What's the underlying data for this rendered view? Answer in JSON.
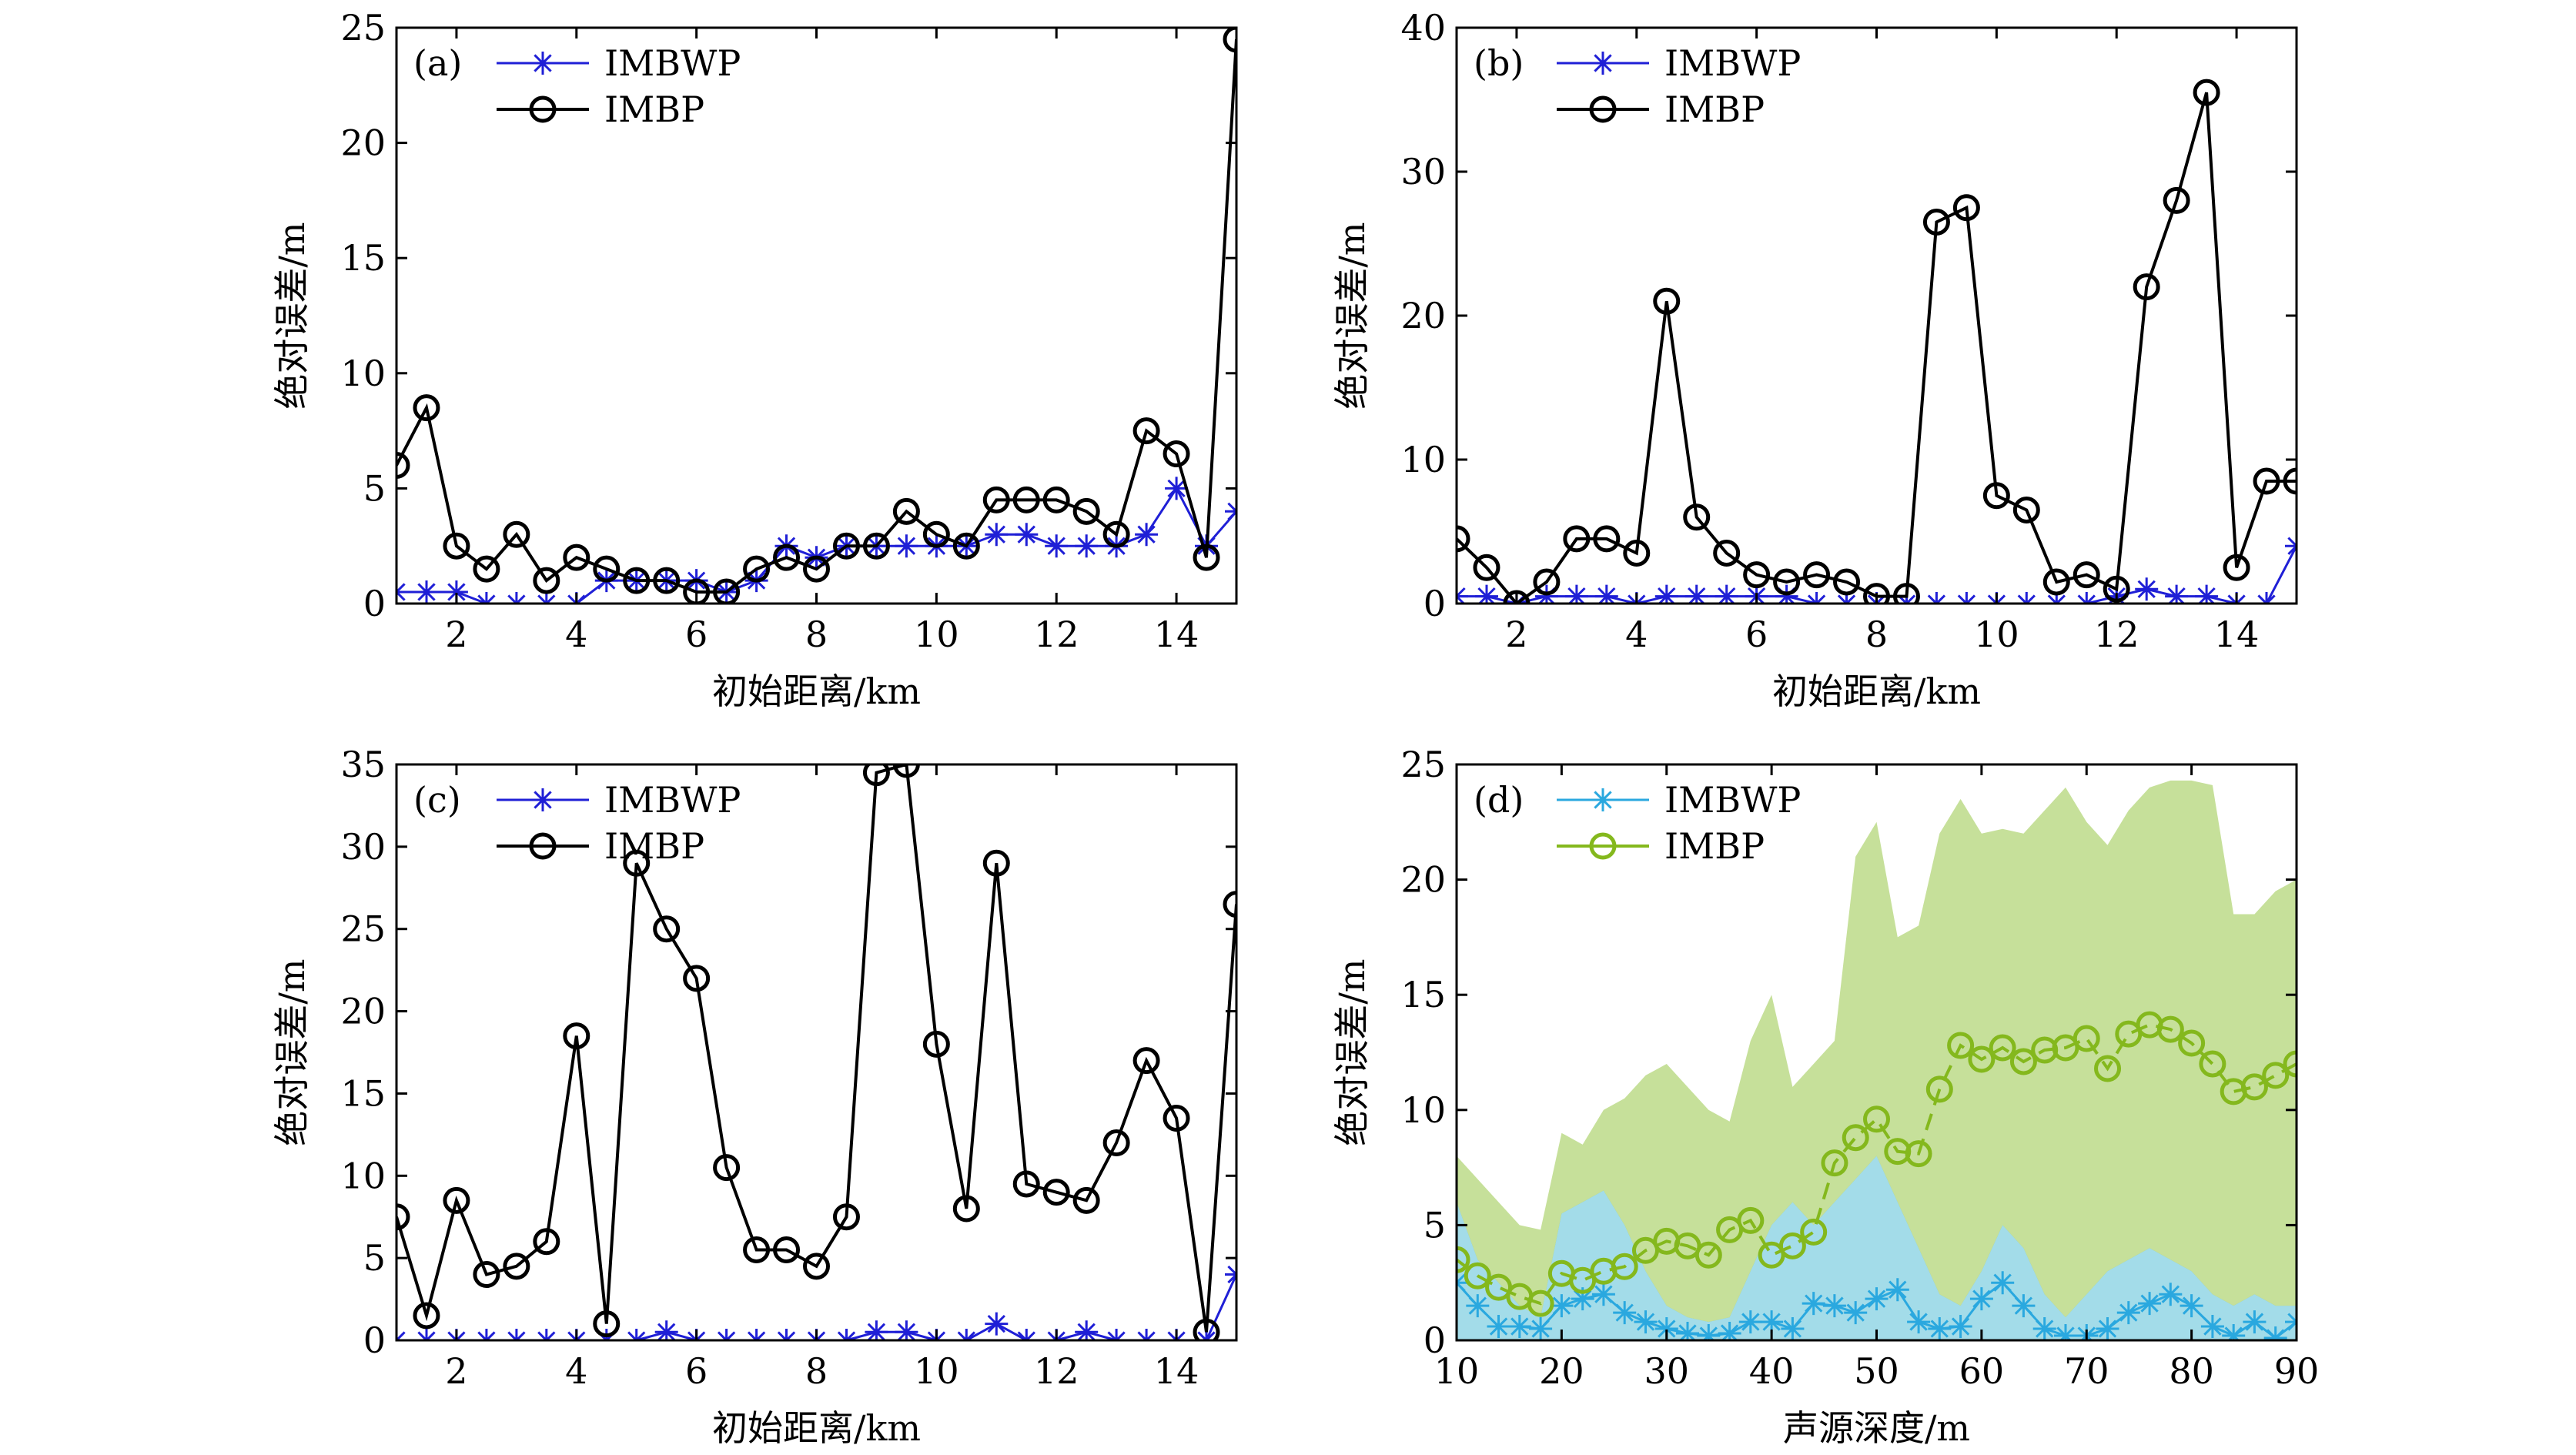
{
  "chart_data": [
    {
      "type": "line",
      "panel": "(a)",
      "xlabel": "初始距离/km",
      "ylabel": "绝对误差/m",
      "xlim": [
        1,
        15
      ],
      "ylim": [
        0,
        25
      ],
      "xticks": [
        2,
        4,
        6,
        8,
        10,
        12,
        14
      ],
      "yticks": [
        0,
        5,
        10,
        15,
        20,
        25
      ],
      "x": [
        1,
        1.5,
        2,
        2.5,
        3,
        3.5,
        4,
        4.5,
        5,
        5.5,
        6,
        6.5,
        7,
        7.5,
        8,
        8.5,
        9,
        9.5,
        10,
        10.5,
        11,
        11.5,
        12,
        12.5,
        13,
        13.5,
        14,
        14.5,
        15
      ],
      "legend_position": "top-left",
      "series": [
        {
          "name": "IMBWP",
          "color": "#1f1fd6",
          "marker": "star",
          "line": "solid",
          "values": [
            0.5,
            0.5,
            0.5,
            0,
            0,
            0,
            0,
            1,
            1,
            1,
            1,
            0.5,
            1,
            2.5,
            2,
            2.5,
            2.5,
            2.5,
            2.5,
            2.5,
            3,
            3,
            2.5,
            2.5,
            2.5,
            3,
            5,
            2.5,
            4
          ]
        },
        {
          "name": "IMBP",
          "color": "#000000",
          "marker": "circle",
          "line": "solid",
          "values": [
            6,
            8.5,
            2.5,
            1.5,
            3,
            1,
            2,
            1.5,
            1,
            1,
            0.5,
            0.5,
            1.5,
            2,
            1.5,
            2.5,
            2.5,
            4,
            3,
            2.5,
            4.5,
            4.5,
            4.5,
            4,
            3,
            7.5,
            6.5,
            2,
            24.5
          ]
        }
      ]
    },
    {
      "type": "line",
      "panel": "(b)",
      "xlabel": "初始距离/km",
      "ylabel": "绝对误差/m",
      "xlim": [
        1,
        15
      ],
      "ylim": [
        0,
        40
      ],
      "xticks": [
        2,
        4,
        6,
        8,
        10,
        12,
        14
      ],
      "yticks": [
        0,
        10,
        20,
        30,
        40
      ],
      "x": [
        1,
        1.5,
        2,
        2.5,
        3,
        3.5,
        4,
        4.5,
        5,
        5.5,
        6,
        6.5,
        7,
        7.5,
        8,
        8.5,
        9,
        9.5,
        10,
        10.5,
        11,
        11.5,
        12,
        12.5,
        13,
        13.5,
        14,
        14.5,
        15
      ],
      "legend_position": "top-left",
      "series": [
        {
          "name": "IMBWP",
          "color": "#1f1fd6",
          "marker": "star",
          "line": "solid",
          "values": [
            0.5,
            0.5,
            0,
            0.5,
            0.5,
            0.5,
            0,
            0.5,
            0.5,
            0.5,
            0.5,
            0.5,
            0,
            0,
            0,
            0,
            0,
            0,
            0,
            0,
            0,
            0,
            0.5,
            1,
            0.5,
            0.5,
            0,
            0,
            4
          ]
        },
        {
          "name": "IMBP",
          "color": "#000000",
          "marker": "circle",
          "line": "solid",
          "values": [
            4.5,
            2.5,
            0,
            1.5,
            4.5,
            4.5,
            3.5,
            21,
            6,
            3.5,
            2,
            1.5,
            2,
            1.5,
            0.5,
            0.5,
            26.5,
            27.5,
            7.5,
            6.5,
            1.5,
            2,
            1,
            22,
            28,
            35.5,
            2.5,
            8.5,
            8.5
          ]
        }
      ]
    },
    {
      "type": "line",
      "panel": "(c)",
      "xlabel": "初始距离/km",
      "ylabel": "绝对误差/m",
      "xlim": [
        1,
        15
      ],
      "ylim": [
        0,
        35
      ],
      "xticks": [
        2,
        4,
        6,
        8,
        10,
        12,
        14
      ],
      "yticks": [
        0,
        5,
        10,
        15,
        20,
        25,
        30,
        35
      ],
      "x": [
        1,
        1.5,
        2,
        2.5,
        3,
        3.5,
        4,
        4.5,
        5,
        5.5,
        6,
        6.5,
        7,
        7.5,
        8,
        8.5,
        9,
        9.5,
        10,
        10.5,
        11,
        11.5,
        12,
        12.5,
        13,
        13.5,
        14,
        14.5,
        15
      ],
      "legend_position": "top-left",
      "series": [
        {
          "name": "IMBWP",
          "color": "#1f1fd6",
          "marker": "star",
          "line": "solid",
          "values": [
            0,
            0,
            0,
            0,
            0,
            0,
            0,
            0,
            0,
            0.5,
            0,
            0,
            0,
            0,
            0,
            0,
            0.5,
            0.5,
            0,
            0,
            1,
            0,
            0,
            0.5,
            0,
            0,
            0,
            0,
            4
          ]
        },
        {
          "name": "IMBP",
          "color": "#000000",
          "marker": "circle",
          "line": "solid",
          "values": [
            7.5,
            1.5,
            8.5,
            4,
            4.5,
            6,
            18.5,
            1,
            29,
            25,
            22,
            10.5,
            5.5,
            5.5,
            4.5,
            7.5,
            34.5,
            35,
            18,
            8,
            29,
            9.5,
            9,
            8.5,
            12,
            17,
            13.5,
            0.5,
            26.5
          ]
        }
      ]
    },
    {
      "type": "area",
      "panel": "(d)",
      "xlabel": "声源深度/m",
      "ylabel": "绝对误差/m",
      "xlim": [
        10,
        90
      ],
      "ylim": [
        0,
        25
      ],
      "xticks": [
        10,
        20,
        30,
        40,
        50,
        60,
        70,
        80,
        90
      ],
      "yticks": [
        0,
        5,
        10,
        15,
        20,
        25
      ],
      "x": [
        10,
        12,
        14,
        16,
        18,
        20,
        22,
        24,
        26,
        28,
        30,
        32,
        34,
        36,
        38,
        40,
        42,
        44,
        46,
        48,
        50,
        52,
        54,
        56,
        58,
        60,
        62,
        64,
        66,
        68,
        70,
        72,
        74,
        76,
        78,
        80,
        82,
        84,
        86,
        88,
        90
      ],
      "legend_position": "top-left",
      "series": [
        {
          "name": "IMBWP",
          "color": "#2aa8df",
          "marker": "star",
          "line": "solid",
          "values": [
            2.5,
            1.5,
            0.6,
            0.6,
            0.5,
            1.5,
            1.8,
            2,
            1.2,
            0.8,
            0.5,
            0.3,
            0.2,
            0.3,
            0.8,
            0.8,
            0.5,
            1.6,
            1.5,
            1.2,
            1.8,
            2.2,
            0.8,
            0.5,
            0.6,
            1.8,
            2.5,
            1.5,
            0.5,
            0.2,
            0.2,
            0.5,
            1.2,
            1.6,
            2,
            1.5,
            0.6,
            0.2,
            0.8,
            0.1,
            0.8
          ],
          "band_upper": [
            6,
            3.5,
            2.5,
            1.5,
            1,
            5.5,
            6,
            6.5,
            5,
            3,
            1.5,
            1,
            0.8,
            1,
            3,
            5,
            6,
            5,
            6,
            7,
            8,
            6,
            4,
            2,
            1.5,
            3,
            5,
            4,
            2,
            1,
            2,
            3,
            3.5,
            4,
            3.5,
            3,
            2,
            1.5,
            2,
            1.5,
            1.5
          ],
          "band_lower": [
            0,
            0,
            0,
            0,
            0,
            0,
            0,
            0,
            0,
            0,
            0,
            0,
            0,
            0,
            0,
            0,
            0,
            0,
            0,
            0,
            0,
            0,
            0,
            0,
            0,
            0,
            0,
            0,
            0,
            0,
            0,
            0,
            0,
            0,
            0,
            0,
            0,
            0,
            0,
            0,
            0
          ]
        },
        {
          "name": "IMBP",
          "color": "#84b81d",
          "marker": "circle",
          "line": "dashed",
          "values": [
            3.5,
            2.8,
            2.3,
            1.9,
            1.6,
            2.9,
            2.6,
            3,
            3.2,
            3.9,
            4.3,
            4.1,
            3.7,
            4.8,
            5.2,
            3.7,
            4.1,
            4.7,
            7.7,
            8.8,
            9.6,
            8.2,
            8.1,
            10.9,
            12.8,
            12.2,
            12.7,
            12.1,
            12.6,
            12.7,
            13.1,
            11.8,
            13.3,
            13.7,
            13.5,
            12.9,
            12,
            10.8,
            11,
            11.5,
            12
          ],
          "band_upper": [
            8,
            7,
            6,
            5,
            4.8,
            9,
            8.5,
            10,
            10.5,
            11.5,
            12,
            11,
            10,
            9.5,
            13,
            15,
            11,
            12,
            13,
            21,
            22.5,
            17.5,
            18,
            22,
            23.5,
            22,
            22.2,
            22,
            23,
            24,
            22.5,
            21.5,
            23,
            24,
            24.3,
            24.3,
            24.1,
            18.5,
            18.5,
            19.5,
            20
          ],
          "band_lower": [
            0,
            0,
            0,
            0,
            0,
            0,
            0,
            0,
            0,
            0,
            0,
            0,
            0,
            0,
            0,
            0,
            0,
            0,
            0,
            0,
            0,
            0,
            0,
            0,
            0,
            0,
            0,
            0,
            0,
            0,
            0,
            0,
            0,
            0,
            0,
            0,
            0,
            0,
            0,
            0,
            0
          ]
        }
      ]
    }
  ]
}
